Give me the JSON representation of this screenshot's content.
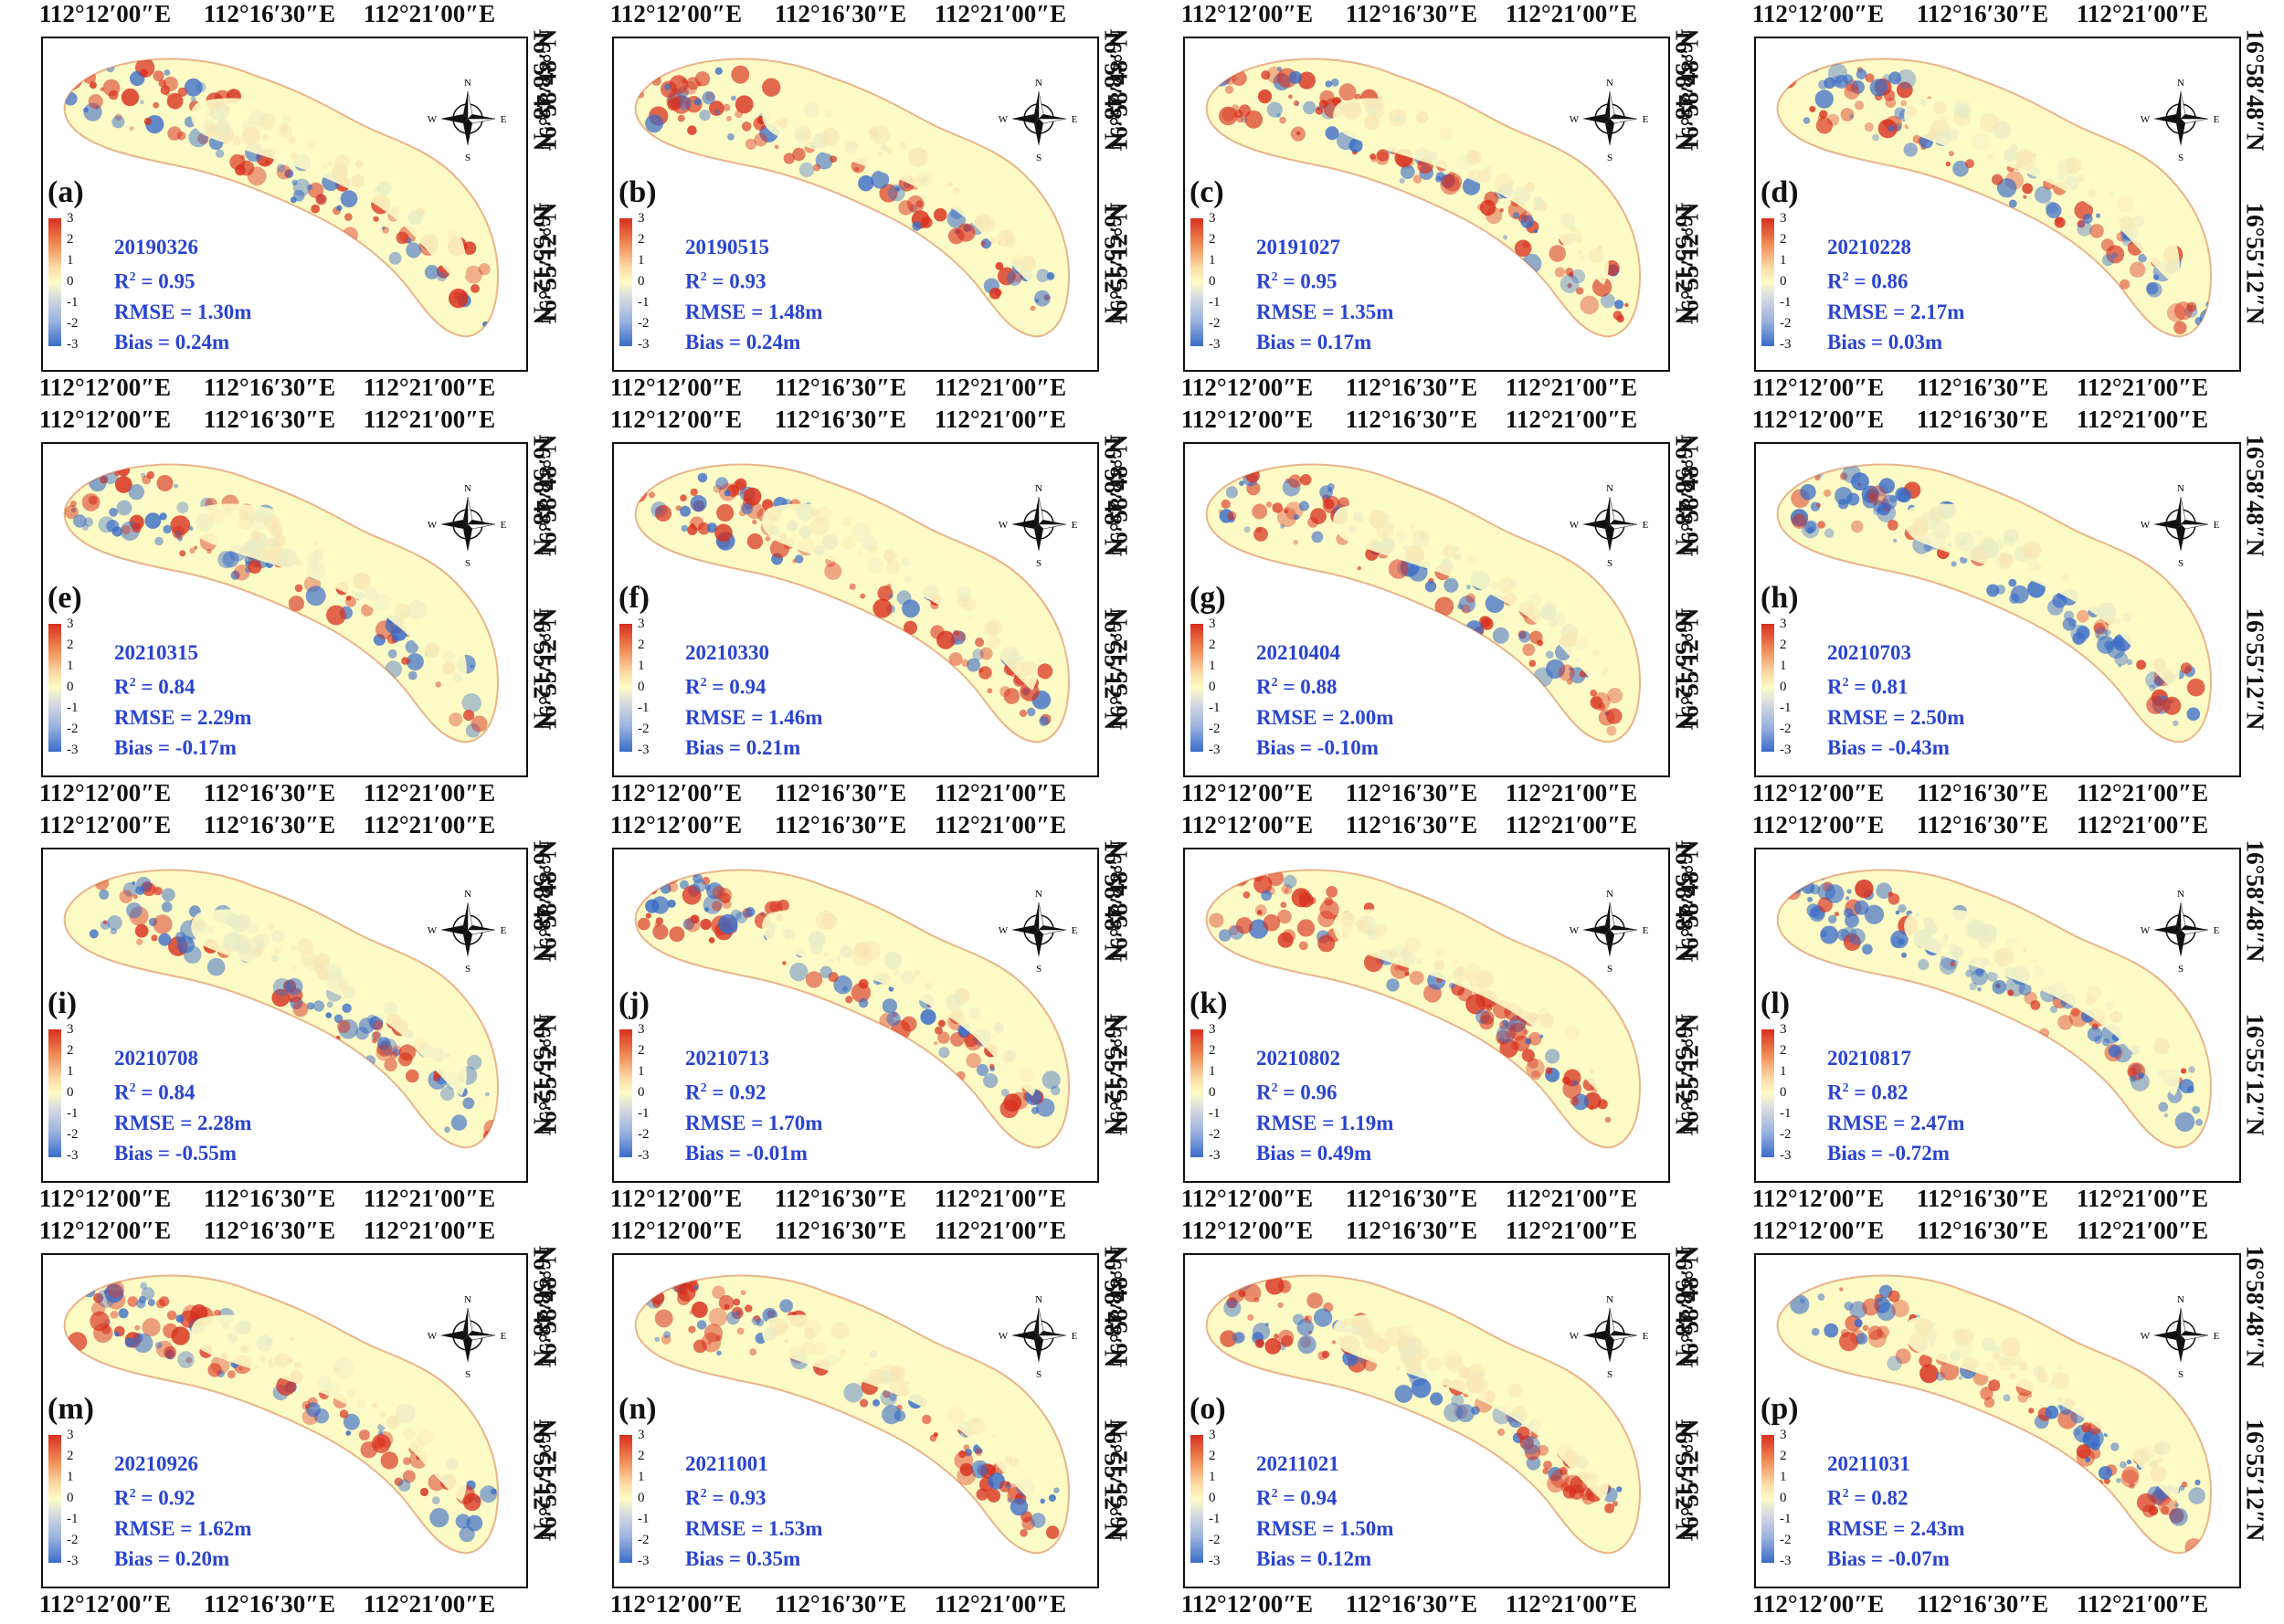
{
  "axes": {
    "lon_ticks": [
      "112°12′00″E",
      "112°16′30″E",
      "112°21′00″E"
    ],
    "lat_ticks": [
      "16°58′48″N",
      "16°55′12″N"
    ]
  },
  "colorbar": {
    "ticks": [
      "3",
      "2",
      "1",
      "0",
      "-1",
      "-2",
      "-3"
    ]
  },
  "compass": {
    "n": "N",
    "s": "S",
    "e": "E",
    "w": "W"
  },
  "colors": {
    "positive": "#d7301f",
    "neutral": "#fdfbc5",
    "negative": "#3a6cc8",
    "stats_text": "#2a44d0"
  },
  "panels": [
    {
      "label": "(a)",
      "date": "20190326",
      "r2": "R",
      "r2_value": " = 0.95",
      "rmse": "RMSE = 1.30m",
      "bias": "Bias = 0.24m"
    },
    {
      "label": "(b)",
      "date": "20190515",
      "r2": "R",
      "r2_value": " = 0.93",
      "rmse": "RMSE = 1.48m",
      "bias": "Bias = 0.24m"
    },
    {
      "label": "(c)",
      "date": "20191027",
      "r2": "R",
      "r2_value": " = 0.95",
      "rmse": "RMSE = 1.35m",
      "bias": "Bias = 0.17m"
    },
    {
      "label": "(d)",
      "date": "20210228",
      "r2": "R",
      "r2_value": " = 0.86",
      "rmse": "RMSE = 2.17m",
      "bias": "Bias = 0.03m"
    },
    {
      "label": "(e)",
      "date": "20210315",
      "r2": "R",
      "r2_value": " = 0.84",
      "rmse": "RMSE = 2.29m",
      "bias": "Bias = -0.17m"
    },
    {
      "label": "(f)",
      "date": "20210330",
      "r2": "R",
      "r2_value": " = 0.94",
      "rmse": "RMSE = 1.46m",
      "bias": "Bias = 0.21m"
    },
    {
      "label": "(g)",
      "date": "20210404",
      "r2": "R",
      "r2_value": " = 0.88",
      "rmse": "RMSE = 2.00m",
      "bias": "Bias = -0.10m"
    },
    {
      "label": "(h)",
      "date": "20210703",
      "r2": "R",
      "r2_value": " = 0.81",
      "rmse": "RMSE = 2.50m",
      "bias": "Bias = -0.43m"
    },
    {
      "label": "(i)",
      "date": "20210708",
      "r2": "R",
      "r2_value": " = 0.84",
      "rmse": "RMSE = 2.28m",
      "bias": "Bias = -0.55m"
    },
    {
      "label": "(j)",
      "date": "20210713",
      "r2": "R",
      "r2_value": " = 0.92",
      "rmse": "RMSE = 1.70m",
      "bias": "Bias = -0.01m"
    },
    {
      "label": "(k)",
      "date": "20210802",
      "r2": "R",
      "r2_value": " = 0.96",
      "rmse": "RMSE = 1.19m",
      "bias": "Bias = 0.49m"
    },
    {
      "label": "(l)",
      "date": "20210817",
      "r2": "R",
      "r2_value": " = 0.82",
      "rmse": "RMSE = 2.47m",
      "bias": "Bias = -0.72m"
    },
    {
      "label": "(m)",
      "date": "20210926",
      "r2": "R",
      "r2_value": " = 0.92",
      "rmse": "RMSE = 1.62m",
      "bias": "Bias = 0.20m"
    },
    {
      "label": "(n)",
      "date": "20211001",
      "r2": "R",
      "r2_value": " = 0.93",
      "rmse": "RMSE = 1.53m",
      "bias": "Bias = 0.35m"
    },
    {
      "label": "(o)",
      "date": "20211021",
      "r2": "R",
      "r2_value": " = 0.94",
      "rmse": "RMSE = 1.50m",
      "bias": "Bias = 0.12m"
    },
    {
      "label": "(p)",
      "date": "20211031",
      "r2": "R",
      "r2_value": " = 0.82",
      "rmse": "RMSE = 2.43m",
      "bias": "Bias = -0.07m"
    }
  ]
}
